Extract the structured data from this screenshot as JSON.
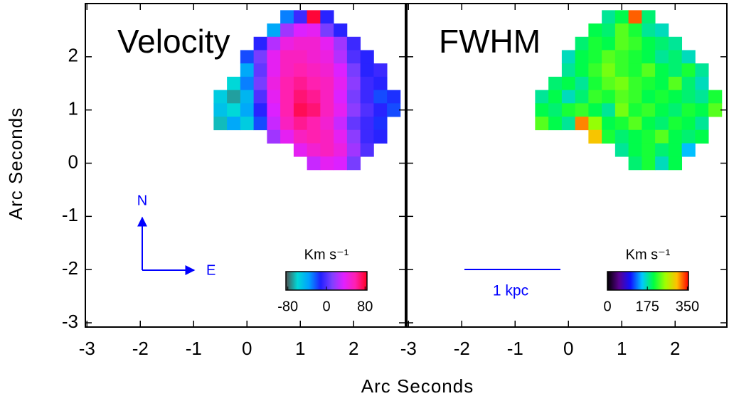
{
  "xlabel": "Arc Seconds",
  "ylabel": "Arc Seconds",
  "chart_data": [
    {
      "type": "heatmap",
      "title": "Velocity",
      "x": [
        -0.5,
        -0.25,
        0,
        0.25,
        0.5,
        0.75,
        1,
        1.25,
        1.5,
        1.75,
        2,
        2.25,
        2.5,
        2.75
      ],
      "y": [
        2.75,
        2.5,
        2.25,
        2,
        1.75,
        1.5,
        1.25,
        1,
        0.75,
        0.5,
        0.25,
        0
      ],
      "values": [
        [
          null,
          null,
          null,
          null,
          null,
          -30,
          -5,
          80,
          -10,
          null,
          null,
          null,
          null,
          null
        ],
        [
          null,
          null,
          null,
          null,
          -40,
          20,
          35,
          40,
          10,
          -10,
          null,
          null,
          null,
          null
        ],
        [
          null,
          null,
          null,
          -10,
          25,
          45,
          50,
          50,
          40,
          20,
          -5,
          null,
          null,
          null
        ],
        [
          null,
          null,
          -20,
          10,
          40,
          55,
          55,
          50,
          45,
          25,
          0,
          -10,
          null,
          null
        ],
        [
          null,
          null,
          -40,
          5,
          40,
          55,
          60,
          55,
          50,
          35,
          10,
          -10,
          -5,
          null
        ],
        [
          null,
          -60,
          -30,
          10,
          45,
          60,
          65,
          60,
          55,
          40,
          15,
          -5,
          -10,
          null
        ],
        [
          -55,
          -70,
          -45,
          0,
          40,
          60,
          70,
          65,
          55,
          35,
          10,
          -5,
          -20,
          -15
        ],
        [
          -50,
          -60,
          -40,
          -10,
          35,
          60,
          75,
          70,
          55,
          40,
          15,
          0,
          -10,
          -20
        ],
        [
          -65,
          -40,
          -55,
          -20,
          30,
          55,
          65,
          60,
          50,
          30,
          5,
          -5,
          -15,
          null
        ],
        [
          null,
          null,
          null,
          null,
          20,
          40,
          55,
          60,
          55,
          40,
          15,
          -5,
          -10,
          null
        ],
        [
          null,
          null,
          null,
          null,
          null,
          null,
          40,
          50,
          55,
          45,
          20,
          0,
          null,
          null
        ],
        [
          null,
          null,
          null,
          null,
          null,
          null,
          null,
          30,
          40,
          35,
          10,
          null,
          null,
          null
        ]
      ],
      "xlim": [
        -3.03,
        2.97
      ],
      "ylim": [
        -3.08,
        3.0
      ],
      "xticks": [
        -3,
        -2,
        -1,
        0,
        1,
        2
      ],
      "yticks": [
        -3,
        -2,
        -1,
        0,
        1,
        2
      ],
      "ytick_labels": true,
      "colorbar": {
        "label": "Km s⁻¹",
        "lim": [
          -84,
          84
        ],
        "ticks": [
          -80,
          0,
          80
        ],
        "colors": [
          "#505050",
          "#00d8d8",
          "#00a0ff",
          "#2020ff",
          "#8040ff",
          "#e020ff",
          "#ff20b0",
          "#ff0020"
        ]
      },
      "compass": {
        "north": "N",
        "east": "E"
      }
    },
    {
      "type": "heatmap",
      "title": "FWHM",
      "x": [
        -0.5,
        -0.25,
        0,
        0.25,
        0.5,
        0.75,
        1,
        1.25,
        1.5,
        1.75,
        2,
        2.25,
        2.5,
        2.75
      ],
      "y": [
        2.75,
        2.5,
        2.25,
        2,
        1.75,
        1.5,
        1.25,
        1,
        0.75,
        0.5,
        0.25,
        0
      ],
      "values": [
        [
          null,
          null,
          null,
          null,
          null,
          180,
          200,
          330,
          190,
          null,
          null,
          null,
          null,
          null
        ],
        [
          null,
          null,
          null,
          null,
          200,
          190,
          230,
          210,
          180,
          170,
          null,
          null,
          null,
          null
        ],
        [
          null,
          null,
          null,
          190,
          210,
          200,
          230,
          220,
          200,
          190,
          180,
          null,
          null,
          null
        ],
        [
          null,
          null,
          170,
          200,
          210,
          230,
          220,
          210,
          200,
          180,
          190,
          170,
          null,
          null
        ],
        [
          null,
          null,
          180,
          200,
          220,
          240,
          220,
          210,
          230,
          200,
          190,
          210,
          180,
          null
        ],
        [
          null,
          190,
          200,
          180,
          210,
          230,
          240,
          220,
          210,
          200,
          230,
          190,
          170,
          null
        ],
        [
          180,
          200,
          170,
          190,
          220,
          210,
          230,
          220,
          200,
          210,
          200,
          190,
          180,
          210
        ],
        [
          200,
          190,
          210,
          220,
          200,
          180,
          240,
          210,
          220,
          200,
          190,
          210,
          200,
          230
        ],
        [
          230,
          200,
          180,
          320,
          250,
          200,
          210,
          230,
          200,
          190,
          210,
          200,
          180,
          null
        ],
        [
          null,
          null,
          null,
          null,
          300,
          210,
          190,
          200,
          210,
          230,
          200,
          190,
          200,
          null
        ],
        [
          null,
          null,
          null,
          null,
          null,
          null,
          180,
          200,
          210,
          190,
          200,
          150,
          null,
          null
        ],
        [
          null,
          null,
          null,
          null,
          null,
          null,
          null,
          190,
          210,
          170,
          200,
          null,
          null,
          null
        ]
      ],
      "xlim": [
        -3.03,
        2.97
      ],
      "ylim": [
        -3.08,
        3.0
      ],
      "xticks": [
        -3,
        -2,
        -1,
        0,
        1,
        2
      ],
      "yticks": [
        -3,
        -2,
        -1,
        0,
        1,
        2
      ],
      "ytick_labels": false,
      "colorbar": {
        "label": "Km s⁻¹",
        "lim": [
          0,
          355
        ],
        "ticks": [
          0,
          175,
          350
        ],
        "colors": [
          "#000000",
          "#5a0090",
          "#1010ff",
          "#00c8ff",
          "#00ff40",
          "#a0ff00",
          "#ffc000",
          "#ff0000"
        ]
      },
      "scale_bar": {
        "label": "1 kpc"
      }
    }
  ]
}
